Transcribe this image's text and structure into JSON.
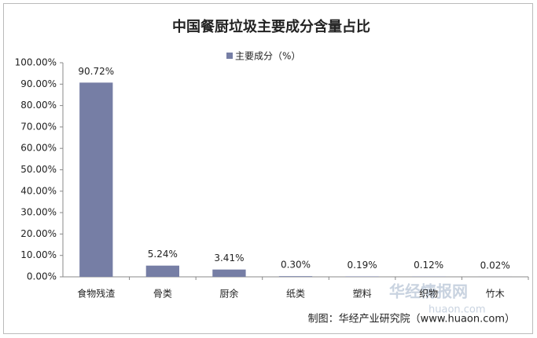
{
  "chart_data": {
    "type": "bar",
    "title": "中国餐厨垃圾主要成分含量占比",
    "categories": [
      "食物残渣",
      "骨类",
      "厨余",
      "纸类",
      "塑料",
      "织物",
      "竹木"
    ],
    "series": [
      {
        "name": "主要成分（%）",
        "color": "#767ea5",
        "values": [
          90.72,
          5.24,
          3.41,
          0.3,
          0.19,
          0.12,
          0.02
        ],
        "value_labels": [
          "90.72%",
          "5.24%",
          "3.41%",
          "0.30%",
          "0.19%",
          "0.12%",
          "0.02%"
        ]
      }
    ],
    "ylim": [
      0,
      100
    ],
    "yticks": [
      {
        "value": 0,
        "label": "0.00%"
      },
      {
        "value": 10,
        "label": "10.00%"
      },
      {
        "value": 20,
        "label": "20.00%"
      },
      {
        "value": 30,
        "label": "30.00%"
      },
      {
        "value": 40,
        "label": "40.00%"
      },
      {
        "value": 50,
        "label": "50.00%"
      },
      {
        "value": 60,
        "label": "60.00%"
      },
      {
        "value": 70,
        "label": "70.00%"
      },
      {
        "value": 80,
        "label": "80.00%"
      },
      {
        "value": 90,
        "label": "90.00%"
      },
      {
        "value": 100,
        "label": "100.00%"
      }
    ],
    "grid": false,
    "legend": "top",
    "source": "制图：华经产业研究院（www.huaon.com）",
    "watermark": [
      "华经情报网",
      "huaon.com"
    ]
  }
}
